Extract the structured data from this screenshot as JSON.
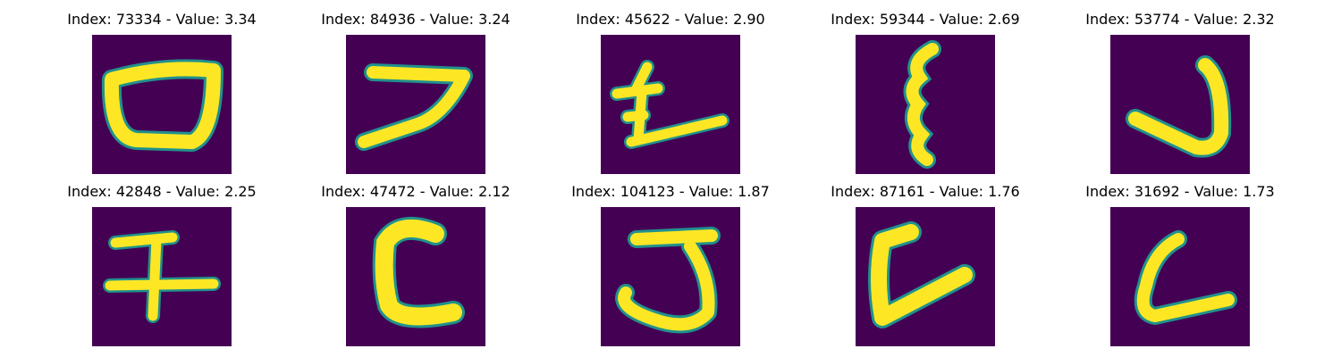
{
  "colors": {
    "background": "#440154",
    "stroke": "#fde725",
    "edge": "#21918c"
  },
  "panels": [
    {
      "title": "Index: 73334 - Value: 3.34",
      "index": 73334,
      "value": 3.34,
      "icon": "glyph-zero"
    },
    {
      "title": "Index: 84936 - Value: 3.24",
      "index": 84936,
      "value": 3.24,
      "icon": "glyph-seven"
    },
    {
      "title": "Index: 45622 - Value: 2.90",
      "index": 45622,
      "value": 2.9,
      "icon": "glyph-kanji-like"
    },
    {
      "title": "Index: 59344 - Value: 2.69",
      "index": 59344,
      "value": 2.69,
      "icon": "glyph-vertical-squiggle"
    },
    {
      "title": "Index: 53774 - Value: 2.32",
      "index": 53774,
      "value": 2.32,
      "icon": "glyph-j"
    },
    {
      "title": "Index: 42848 - Value: 2.25",
      "index": 42848,
      "value": 2.25,
      "icon": "glyph-cross"
    },
    {
      "title": "Index: 47472 - Value: 2.12",
      "index": 47472,
      "value": 2.12,
      "icon": "glyph-c"
    },
    {
      "title": "Index: 104123 - Value: 1.87",
      "index": 104123,
      "value": 1.87,
      "icon": "glyph-j-hook"
    },
    {
      "title": "Index: 87161 - Value: 1.76",
      "index": 87161,
      "value": 1.76,
      "icon": "glyph-l-wide"
    },
    {
      "title": "Index: 31692 - Value: 1.73",
      "index": 31692,
      "value": 1.73,
      "icon": "glyph-l"
    }
  ]
}
